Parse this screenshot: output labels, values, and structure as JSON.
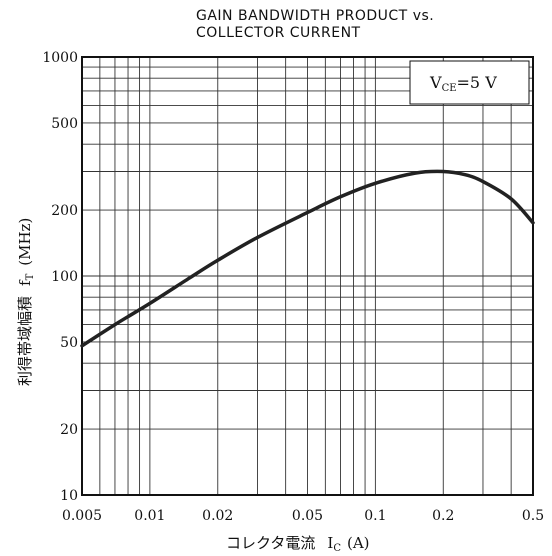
{
  "chart_data": {
    "type": "line",
    "title_line1": "GAIN BANDWIDTH PRODUCT vs.",
    "title_line2": "COLLECTOR CURRENT",
    "xlabel_text": "コレクタ電流",
    "xlabel_symbol": "I",
    "xlabel_sub": "C",
    "xlabel_unit": "(A)",
    "ylabel_text": "利得帯域幅積",
    "ylabel_symbol": "f",
    "ylabel_sub": "T",
    "ylabel_unit": "(MHz)",
    "condition_symbol": "V",
    "condition_sub": "CE",
    "condition_value": "=5 V",
    "xscale": "log",
    "yscale": "log",
    "xlim": [
      0.005,
      0.5
    ],
    "ylim": [
      10,
      1000
    ],
    "grid": true,
    "x_ticks": [
      {
        "v": 0.005,
        "label": "0.005"
      },
      {
        "v": 0.01,
        "label": "0.01"
      },
      {
        "v": 0.02,
        "label": "0.02"
      },
      {
        "v": 0.05,
        "label": "0.05"
      },
      {
        "v": 0.1,
        "label": "0.1"
      },
      {
        "v": 0.2,
        "label": "0.2"
      },
      {
        "v": 0.5,
        "label": "0.5"
      }
    ],
    "y_ticks": [
      {
        "v": 10,
        "label": "10"
      },
      {
        "v": 20,
        "label": "20"
      },
      {
        "v": 50,
        "label": "50"
      },
      {
        "v": 100,
        "label": "100"
      },
      {
        "v": 200,
        "label": "200"
      },
      {
        "v": 500,
        "label": "500"
      },
      {
        "v": 1000,
        "label": "1000"
      }
    ],
    "series": [
      {
        "x": [
          0.005,
          0.007,
          0.01,
          0.015,
          0.02,
          0.03,
          0.05,
          0.07,
          0.1,
          0.15,
          0.2,
          0.25,
          0.3,
          0.4,
          0.5
        ],
        "y": [
          48,
          60,
          75,
          98,
          118,
          150,
          195,
          230,
          265,
          295,
          300,
          290,
          270,
          225,
          175
        ]
      }
    ]
  }
}
